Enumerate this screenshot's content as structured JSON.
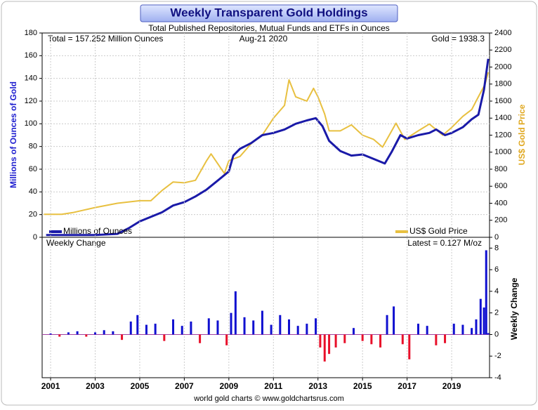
{
  "title": "Weekly Transparent Gold Holdings",
  "footer": "world gold charts © www.goldchartsrus.com",
  "chart_data": [
    {
      "type": "line",
      "subtitle": "Total Published Repositories, Mutual Funds and ETFs in Ounces",
      "annotations": [
        "Total = 157.252 Million Ounces",
        "Aug-21  2020",
        "Gold = 1938.3"
      ],
      "y_label": "Millions of Ounces of Gold",
      "y2_label": "US$ Gold Price",
      "xlim": [
        2000.62,
        2020.7
      ],
      "ylim": [
        0,
        180
      ],
      "yticks": [
        0,
        20,
        40,
        60,
        80,
        100,
        120,
        140,
        160,
        180
      ],
      "y2lim": [
        0,
        2400
      ],
      "y2ticks": [
        0,
        200,
        400,
        600,
        800,
        1000,
        1200,
        1400,
        1600,
        1800,
        2000,
        2200,
        2400
      ],
      "grid": true,
      "series": [
        {
          "name": "Millions of Ounces",
          "color": "#1a1aa8",
          "x": [
            2000.8,
            2003,
            2004,
            2004.5,
            2005,
            2006,
            2006.5,
            2007,
            2007.5,
            2008,
            2008.5,
            2009,
            2009.2,
            2009.5,
            2010,
            2010.5,
            2011,
            2011.5,
            2012,
            2012.5,
            2012.9,
            2013.2,
            2013.5,
            2014,
            2014.5,
            2015,
            2015.5,
            2016,
            2016.3,
            2016.7,
            2017,
            2017.5,
            2018,
            2018.3,
            2018.7,
            2019,
            2019.5,
            2019.9,
            2020.2,
            2020.45,
            2020.64
          ],
          "values": [
            2,
            2,
            3,
            8,
            14,
            22,
            28,
            31,
            36,
            42,
            50,
            58,
            72,
            78,
            83,
            90,
            92,
            95,
            100,
            103,
            105,
            98,
            85,
            76,
            72,
            73,
            69,
            65,
            75,
            90,
            87,
            90,
            92,
            95,
            90,
            92,
            97,
            104,
            108,
            130,
            157.252
          ]
        },
        {
          "name": "US$ Gold Price",
          "color": "#e8c040",
          "axis": "y2",
          "x": [
            2000.7,
            2001.5,
            2002,
            2002.5,
            2003,
            2004,
            2005,
            2005.5,
            2006,
            2006.5,
            2007,
            2007.5,
            2008,
            2008.2,
            2008.8,
            2009,
            2009.5,
            2010,
            2010.5,
            2011,
            2011.5,
            2011.7,
            2012,
            2012.5,
            2012.8,
            2013,
            2013.3,
            2013.5,
            2014,
            2014.5,
            2015,
            2015.5,
            2015.9,
            2016.5,
            2016.9,
            2017.5,
            2018,
            2018.6,
            2019,
            2019.5,
            2019.9,
            2020.2,
            2020.5,
            2020.64
          ],
          "values": [
            270,
            270,
            290,
            320,
            350,
            400,
            430,
            430,
            550,
            650,
            640,
            670,
            900,
            980,
            750,
            900,
            950,
            1100,
            1200,
            1400,
            1550,
            1850,
            1650,
            1600,
            1750,
            1650,
            1450,
            1250,
            1250,
            1320,
            1200,
            1150,
            1060,
            1340,
            1150,
            1250,
            1330,
            1200,
            1290,
            1420,
            1500,
            1650,
            1800,
            1938.3
          ]
        }
      ]
    },
    {
      "type": "bar",
      "annotations": [
        "Weekly Change",
        "Latest = 0.127 M/oz"
      ],
      "y_label": "Weekly Change",
      "xlim": [
        2000.62,
        2020.7
      ],
      "xticks": [
        2001,
        2003,
        2005,
        2007,
        2009,
        2011,
        2013,
        2015,
        2017,
        2019
      ],
      "ylim": [
        -4,
        9
      ],
      "yticks": [
        -4,
        -2,
        0,
        2,
        4,
        6,
        8
      ],
      "colors": {
        "positive": "#1010d0",
        "negative": "#e8102a"
      },
      "x": [
        2001.0,
        2001.4,
        2001.8,
        2002.2,
        2002.6,
        2003.0,
        2003.4,
        2003.8,
        2004.2,
        2004.6,
        2004.9,
        2005.3,
        2005.7,
        2006.1,
        2006.5,
        2006.9,
        2007.3,
        2007.7,
        2008.1,
        2008.5,
        2008.9,
        2009.1,
        2009.3,
        2009.7,
        2010.1,
        2010.5,
        2010.9,
        2011.3,
        2011.7,
        2012.1,
        2012.5,
        2012.9,
        2013.1,
        2013.3,
        2013.5,
        2013.8,
        2014.2,
        2014.6,
        2015.0,
        2015.4,
        2015.8,
        2016.1,
        2016.4,
        2016.8,
        2017.1,
        2017.5,
        2017.9,
        2018.3,
        2018.7,
        2019.1,
        2019.5,
        2019.9,
        2020.1,
        2020.3,
        2020.45,
        2020.55,
        2020.64
      ],
      "values": [
        0.1,
        -0.2,
        0.2,
        0.3,
        -0.2,
        0.2,
        0.4,
        0.3,
        -0.5,
        1.2,
        1.8,
        0.9,
        1.0,
        -0.6,
        1.4,
        0.8,
        1.2,
        -0.8,
        1.5,
        1.3,
        -1.0,
        2.0,
        4.0,
        1.6,
        1.3,
        2.2,
        0.9,
        1.8,
        1.4,
        0.8,
        1.0,
        1.5,
        -1.2,
        -2.5,
        -1.8,
        -1.2,
        -0.8,
        0.6,
        -0.6,
        -0.9,
        -1.2,
        1.8,
        2.6,
        -0.9,
        -2.3,
        1.0,
        0.8,
        -1.0,
        -0.8,
        1.0,
        0.9,
        0.6,
        1.4,
        3.3,
        2.5,
        7.8,
        0.127
      ]
    }
  ]
}
